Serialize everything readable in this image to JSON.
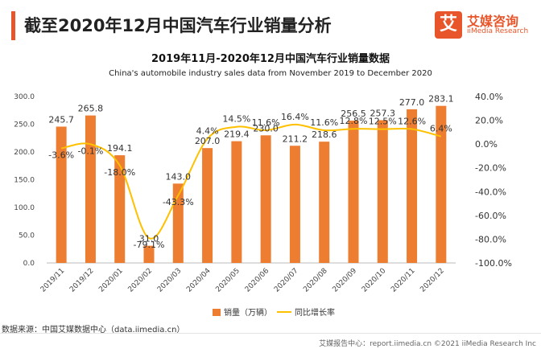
{
  "page": {
    "title": "截至2020年12月中国汽车行业销量分析",
    "source": "数据来源：中国艾媒数据中心（data.iimedia.cn）",
    "copyright": "艾媒报告中心：report.iimedia.cn ©2021 iiMedia Research Inc"
  },
  "logo": {
    "mark": "艾",
    "name": "艾媒咨询",
    "sub": "iiMedia Research"
  },
  "colors": {
    "bar": "#ed7d31",
    "line": "#ffc000",
    "accent": "#e8552a"
  },
  "chart_data": {
    "type": "bar",
    "title": "2019年11月-2020年12月中国汽车行业销量数据",
    "subtitle": "China's automobile industry sales data from November 2019 to December 2020",
    "categories": [
      "2019/11",
      "2019/12",
      "2020/01",
      "2020/02",
      "2020/03",
      "2020/04",
      "2020/05",
      "2020/06",
      "2020/07",
      "2020/08",
      "2020/09",
      "2020/10",
      "2020/11",
      "2020/12"
    ],
    "series": [
      {
        "name": "销量（万辆）",
        "type": "bar",
        "axis": "left",
        "values": [
          245.7,
          265.8,
          194.1,
          31.0,
          143.0,
          207.0,
          219.4,
          230.0,
          211.2,
          218.6,
          256.5,
          257.3,
          277.0,
          283.1
        ],
        "labels": [
          "245.7",
          "265.8",
          "194.1",
          "31.0",
          "143.0",
          "207.0",
          "219.4",
          "230.0",
          "211.2",
          "218.6",
          "256.5",
          "257.3",
          "277.0",
          "283.1"
        ]
      },
      {
        "name": "同比增长率",
        "type": "line",
        "axis": "right",
        "values": [
          -3.6,
          -0.1,
          -18.0,
          -79.1,
          -43.3,
          4.4,
          14.5,
          11.6,
          16.4,
          11.6,
          12.8,
          12.5,
          12.6,
          6.4
        ],
        "labels": [
          "-3.6%",
          "-0.1%",
          "-18.0%",
          "-79.1%",
          "-43.3%",
          "4.4%",
          "14.5%",
          "11.6%",
          "16.4%",
          "11.6%",
          "12.8%",
          "12.5%",
          "12.6%",
          "6.4%"
        ]
      }
    ],
    "left_axis": {
      "ylim": [
        0,
        300
      ],
      "ticks": [
        "0.0",
        "50.0",
        "100.0",
        "150.0",
        "200.0",
        "250.0",
        "300.0"
      ]
    },
    "right_axis": {
      "ylim": [
        -100,
        40
      ],
      "ticks": [
        "-100.0%",
        "-80.0%",
        "-60.0%",
        "-40.0%",
        "-20.0%",
        "0.0%",
        "20.0%",
        "40.0%"
      ]
    },
    "grid": false,
    "legend_position": "bottom"
  }
}
